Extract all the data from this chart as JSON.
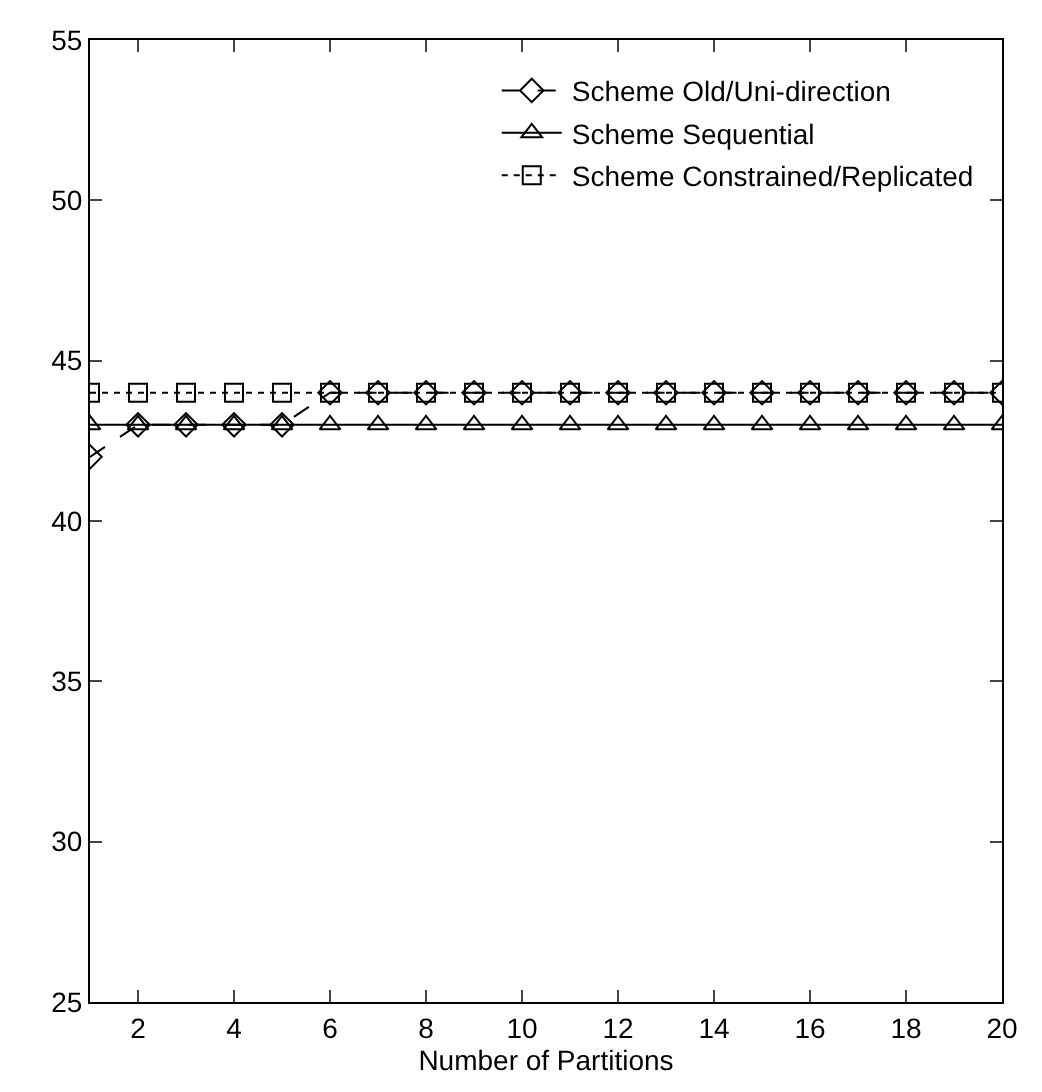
{
  "chart_data": {
    "type": "line",
    "xlabel": "Number of Partitions",
    "x": [
      1,
      2,
      3,
      4,
      5,
      6,
      7,
      8,
      9,
      10,
      11,
      12,
      13,
      14,
      15,
      16,
      17,
      18,
      19,
      20
    ],
    "series": [
      {
        "name": "Scheme Old/Uni-direction",
        "color": "#000000",
        "marker": "diamond",
        "line_style": "dashed",
        "values": [
          42,
          43,
          43,
          43,
          43,
          44,
          44,
          44,
          44,
          44,
          44,
          44,
          44,
          44,
          44,
          44,
          44,
          44,
          44,
          44
        ]
      },
      {
        "name": "Scheme Sequential",
        "color": "#000000",
        "marker": "triangle",
        "line_style": "solid",
        "values": [
          43,
          43,
          43,
          43,
          43,
          43,
          43,
          43,
          43,
          43,
          43,
          43,
          43,
          43,
          43,
          43,
          43,
          43,
          43,
          43
        ]
      },
      {
        "name": "Scheme Constrained/Replicated",
        "color": "#000000",
        "marker": "square",
        "line_style": "dotted",
        "values": [
          44,
          44,
          44,
          44,
          44,
          44,
          44,
          44,
          44,
          44,
          44,
          44,
          44,
          44,
          44,
          44,
          44,
          44,
          44,
          44
        ]
      }
    ],
    "xlim": [
      1,
      20
    ],
    "xticks": [
      2,
      4,
      6,
      8,
      10,
      12,
      14,
      16,
      18,
      20
    ],
    "ylim": [
      25,
      55
    ],
    "yticks": [
      25,
      30,
      35,
      40,
      45,
      50,
      55
    ],
    "grid": false,
    "legend": "top right"
  }
}
